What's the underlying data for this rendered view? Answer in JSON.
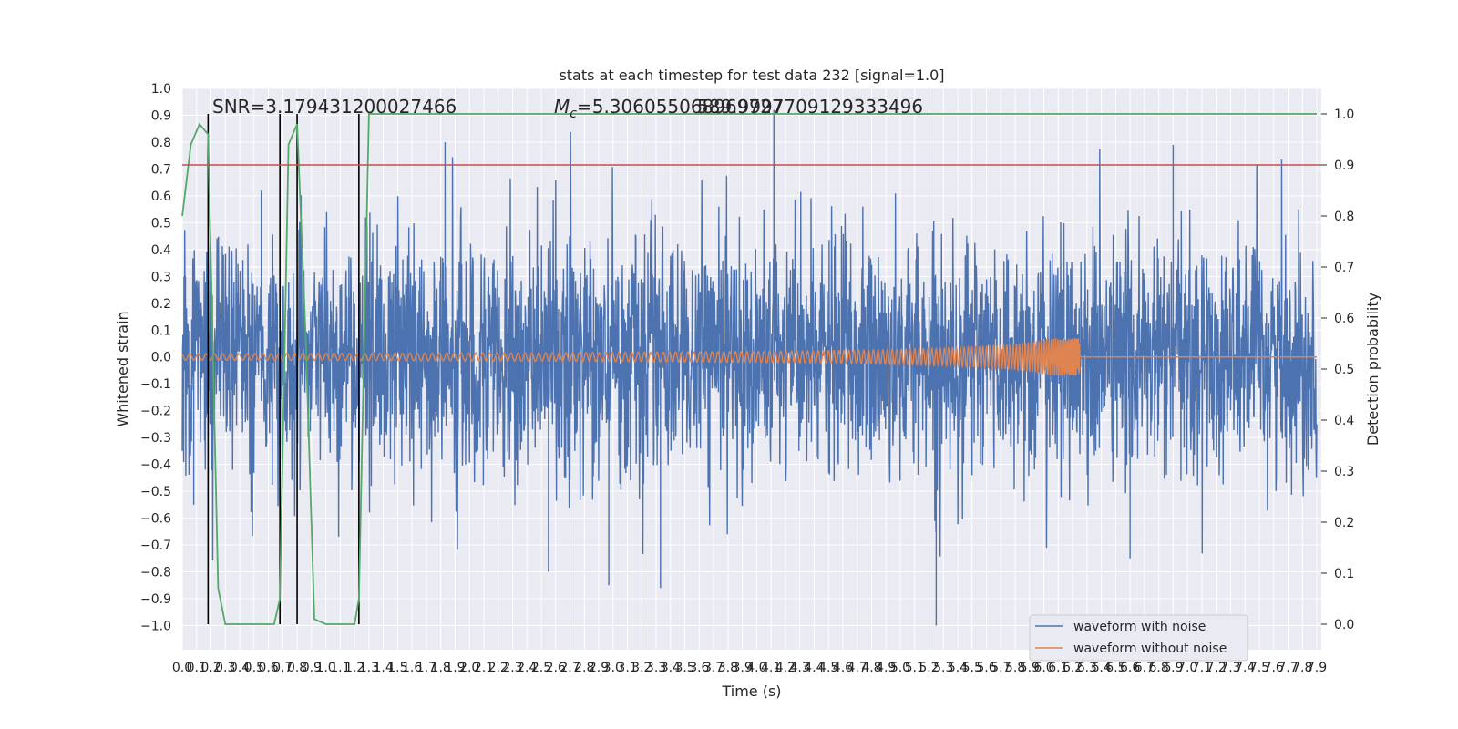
{
  "chart_data": {
    "type": "line",
    "title": "stats at each timestep for test data 232 [signal=1.0]",
    "xlabel": "Time (s)",
    "ylabel_left": "Whitened strain",
    "ylabel_right": "Detection probability",
    "xlim": [
      0.0,
      7.9
    ],
    "ylim_left": [
      -1.09,
      1.0
    ],
    "ylim_right": [
      -0.05,
      1.05
    ],
    "x_ticks": [
      "0.0",
      "0.1",
      "0.2",
      "0.3",
      "0.4",
      "0.5",
      "0.6",
      "0.7",
      "0.8",
      "0.9",
      "1.0",
      "1.1",
      "1.2",
      "1.3",
      "1.4",
      "1.5",
      "1.6",
      "1.7",
      "1.8",
      "1.9",
      "2.0",
      "2.1",
      "2.2",
      "2.3",
      "2.4",
      "2.5",
      "2.6",
      "2.7",
      "2.8",
      "2.9",
      "3.0",
      "3.1",
      "3.2",
      "3.3",
      "3.4",
      "3.5",
      "3.6",
      "3.7",
      "3.8",
      "3.9",
      "4.0",
      "4.1",
      "4.2",
      "4.3",
      "4.4",
      "4.5",
      "4.6",
      "4.7",
      "4.8",
      "4.9",
      "5.0",
      "5.1",
      "5.2",
      "5.3",
      "5.4",
      "5.5",
      "5.6",
      "5.7",
      "5.8",
      "5.9",
      "6.0",
      "6.1",
      "6.2",
      "6.3",
      "6.4",
      "6.5",
      "6.6",
      "6.7",
      "6.8",
      "6.9",
      "7.0",
      "7.1",
      "7.2",
      "7.3",
      "7.4",
      "7.5",
      "7.6",
      "7.7",
      "7.8",
      "7.9"
    ],
    "y_ticks_left": [
      "1.0",
      "0.9",
      "0.8",
      "0.7",
      "0.6",
      "0.5",
      "0.4",
      "0.3",
      "0.2",
      "0.1",
      "0.0",
      "−0.1",
      "−0.2",
      "−0.3",
      "−0.4",
      "−0.5",
      "−0.6",
      "−0.7",
      "−0.8",
      "−0.9",
      "−1.0"
    ],
    "y_ticks_right": [
      "1.0",
      "0.9",
      "0.8",
      "0.7",
      "0.6",
      "0.5",
      "0.4",
      "0.3",
      "0.2",
      "0.1",
      "0.0"
    ],
    "annotations": {
      "snr": "SNR=3.179431200027466",
      "mc_symbol": "M",
      "mc_sub": "c",
      "mc_value": "=5.306055068969727",
      "extra": "589.9997709129333496"
    },
    "threshold_right": 0.9,
    "vertical_markers_s": [
      0.18,
      0.68,
      0.8,
      1.23
    ],
    "series": [
      {
        "name": "waveform with noise",
        "color": "#4c72b0",
        "axis": "left",
        "kind": "noise",
        "typical_amplitude": 0.4,
        "peak_max": 0.92,
        "peak_min": -1.0
      },
      {
        "name": "waveform without noise",
        "color": "#dd8452",
        "axis": "left",
        "kind": "chirp",
        "amplitude_start": 0.012,
        "amplitude_peak": 0.07,
        "merger_time_s": 6.25
      },
      {
        "name": "",
        "color": "#55a868",
        "axis": "right",
        "kind": "probability",
        "x": [
          0.0,
          0.06,
          0.12,
          0.18,
          0.25,
          0.3,
          0.4,
          0.5,
          0.6,
          0.64,
          0.68,
          0.74,
          0.8,
          0.86,
          0.92,
          1.0,
          1.1,
          1.2,
          1.23,
          1.3,
          1.5,
          2.0,
          3.0,
          4.0,
          5.0,
          6.0,
          7.0,
          7.9
        ],
        "y": [
          0.8,
          0.94,
          0.98,
          0.96,
          0.07,
          0.0,
          0.0,
          0.0,
          0.0,
          0.0,
          0.05,
          0.94,
          0.98,
          0.56,
          0.01,
          0.0,
          0.0,
          0.0,
          0.05,
          1.0,
          1.0,
          1.0,
          1.0,
          1.0,
          1.0,
          1.0,
          1.0,
          1.0
        ]
      },
      {
        "name": "",
        "color": "#c44e52",
        "axis": "right",
        "kind": "threshold",
        "y": [
          0.9,
          0.9
        ]
      }
    ],
    "legend": {
      "placement": "lower-right"
    },
    "grid": true
  }
}
